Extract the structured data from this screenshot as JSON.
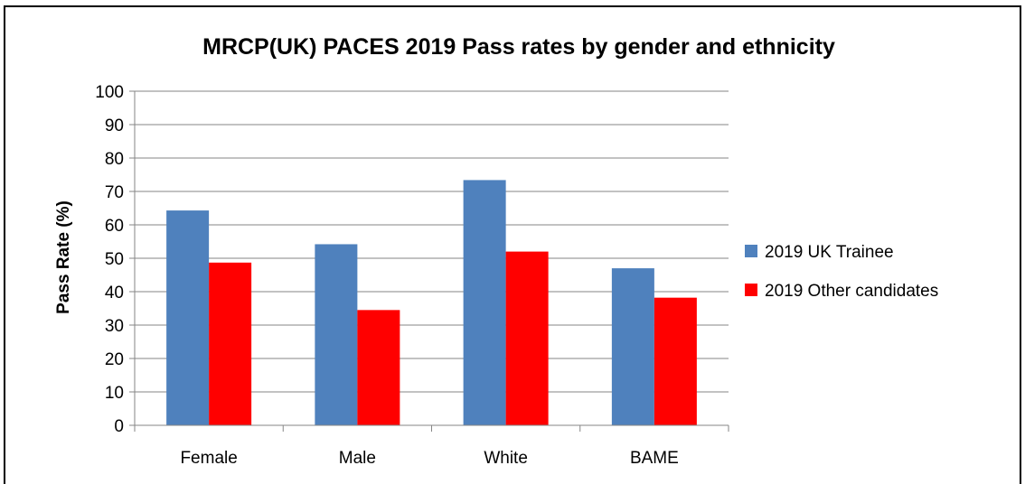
{
  "chart_data": {
    "type": "bar",
    "title": "MRCP(UK) PACES 2019 Pass rates by gender and ethnicity",
    "xlabel": "",
    "ylabel": "Pass Rate (%)",
    "categories": [
      "Female",
      "Male",
      "White",
      "BAME"
    ],
    "series": [
      {
        "name": "2019 UK Trainee",
        "color": "#4F81BD",
        "values": [
          64.3,
          54.2,
          73.4,
          47.0
        ]
      },
      {
        "name": "2019 Other candidates",
        "color": "#FF0000",
        "values": [
          48.7,
          34.5,
          52.0,
          38.2
        ]
      }
    ],
    "ylim": [
      0,
      100
    ],
    "yticks": [
      "0",
      "10",
      "20",
      "30",
      "40",
      "50",
      "60",
      "70",
      "80",
      "90",
      "100"
    ],
    "grid": true,
    "legend_position": "right",
    "colors": {
      "gridline": "#868686",
      "axis": "#868686"
    }
  }
}
